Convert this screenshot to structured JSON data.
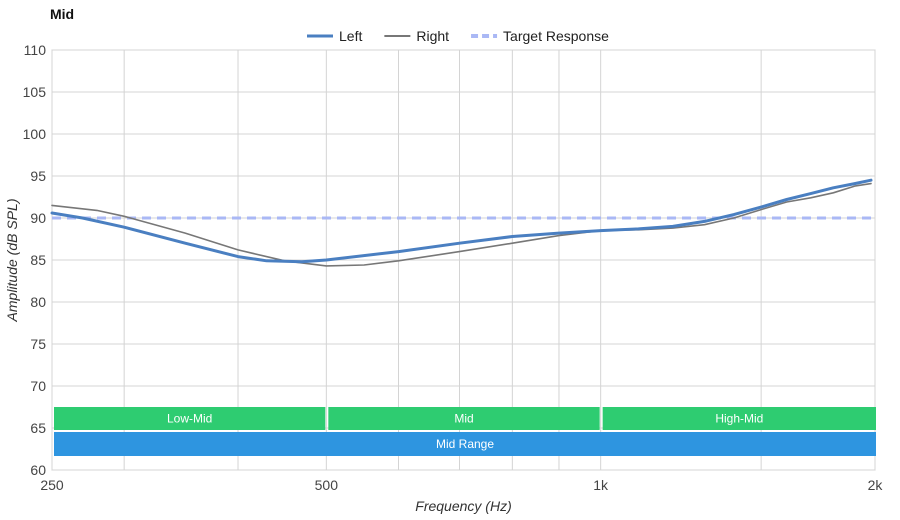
{
  "chart_data": {
    "type": "line",
    "title": "Mid",
    "xlabel": "Frequency (Hz)",
    "ylabel": "Amplitude (dB SPL)",
    "x_scale": "log",
    "xlim": [
      250,
      2000
    ],
    "ylim": [
      60,
      110
    ],
    "x_ticks": [
      {
        "value": 250,
        "label": "250"
      },
      {
        "value": 500,
        "label": "500"
      },
      {
        "value": 1000,
        "label": "1k"
      },
      {
        "value": 2000,
        "label": "2k"
      }
    ],
    "x_minor_gridlines": [
      300,
      400,
      600,
      700,
      800,
      900,
      1500
    ],
    "y_ticks": [
      60,
      65,
      70,
      75,
      80,
      85,
      90,
      95,
      100,
      105,
      110
    ],
    "grid": true,
    "legend_position": "top-center",
    "series": [
      {
        "name": "Left",
        "color": "#4a7fc1",
        "style": "solid-thick",
        "points": [
          [
            250,
            90.6
          ],
          [
            270,
            90.0
          ],
          [
            300,
            88.9
          ],
          [
            350,
            87.0
          ],
          [
            400,
            85.4
          ],
          [
            430,
            84.9
          ],
          [
            470,
            84.8
          ],
          [
            500,
            85.0
          ],
          [
            600,
            86.0
          ],
          [
            700,
            87.0
          ],
          [
            800,
            87.8
          ],
          [
            900,
            88.2
          ],
          [
            1000,
            88.5
          ],
          [
            1100,
            88.7
          ],
          [
            1200,
            89.0
          ],
          [
            1300,
            89.6
          ],
          [
            1400,
            90.4
          ],
          [
            1500,
            91.3
          ],
          [
            1600,
            92.2
          ],
          [
            1700,
            92.9
          ],
          [
            1800,
            93.6
          ],
          [
            1900,
            94.1
          ],
          [
            1980,
            94.5
          ]
        ]
      },
      {
        "name": "Right",
        "color": "#777777",
        "style": "solid-thin",
        "points": [
          [
            250,
            91.5
          ],
          [
            280,
            90.9
          ],
          [
            300,
            90.2
          ],
          [
            350,
            88.2
          ],
          [
            400,
            86.2
          ],
          [
            450,
            84.9
          ],
          [
            500,
            84.3
          ],
          [
            550,
            84.4
          ],
          [
            600,
            84.9
          ],
          [
            700,
            86.0
          ],
          [
            800,
            87.0
          ],
          [
            900,
            87.9
          ],
          [
            1000,
            88.5
          ],
          [
            1100,
            88.6
          ],
          [
            1200,
            88.8
          ],
          [
            1300,
            89.2
          ],
          [
            1400,
            90.0
          ],
          [
            1500,
            91.0
          ],
          [
            1600,
            91.9
          ],
          [
            1700,
            92.4
          ],
          [
            1800,
            93.0
          ],
          [
            1900,
            93.8
          ],
          [
            1980,
            94.1
          ]
        ]
      },
      {
        "name": "Target Response",
        "color": "#aab8f5",
        "style": "dashed",
        "points": [
          [
            250,
            90
          ],
          [
            1980,
            90
          ]
        ]
      }
    ],
    "bands": [
      {
        "label": "Low-Mid",
        "from": 250,
        "to": 500,
        "color": "#2ecc71",
        "row": 1
      },
      {
        "label": "Mid",
        "from": 500,
        "to": 1000,
        "color": "#2ecc71",
        "row": 1
      },
      {
        "label": "High-Mid",
        "from": 1000,
        "to": 2000,
        "color": "#2ecc71",
        "row": 1
      },
      {
        "label": "Mid Range",
        "from": 250,
        "to": 2000,
        "color": "#2e95e0",
        "row": 2
      }
    ]
  }
}
